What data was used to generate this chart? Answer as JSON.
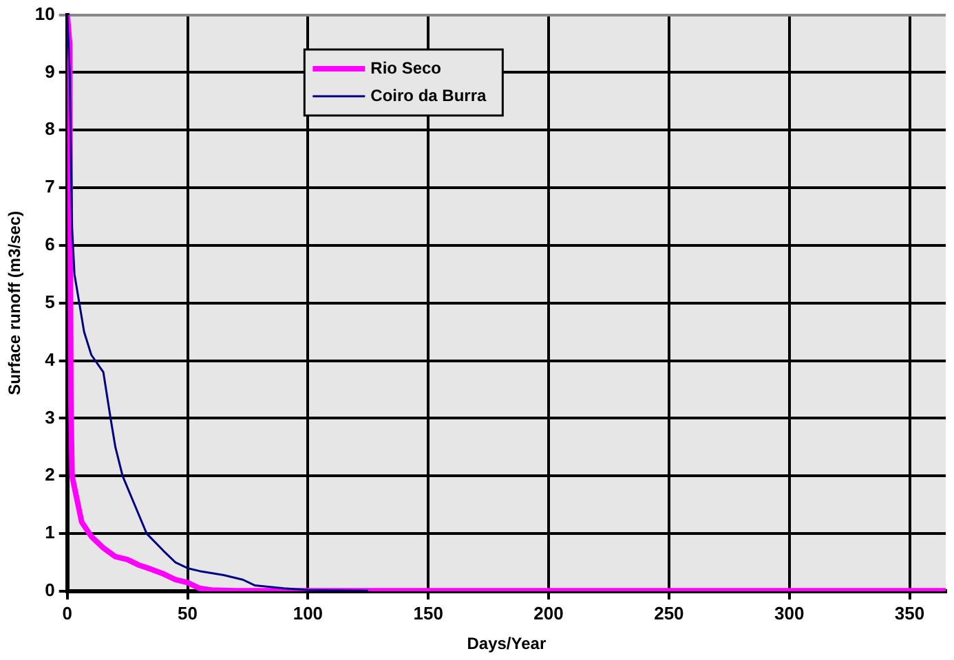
{
  "chart_data": {
    "type": "line",
    "xlabel": "Days/Year",
    "ylabel": "Surface runoff (m3/sec)",
    "xlim": [
      0,
      365
    ],
    "xticks": [
      0,
      50,
      100,
      150,
      200,
      250,
      300,
      350
    ],
    "ylim": [
      0,
      10
    ],
    "yticks": [
      0,
      1,
      2,
      3,
      4,
      5,
      6,
      7,
      8,
      9,
      10
    ],
    "grid": true,
    "legend": "top left",
    "marker": "none",
    "line_style": "solid",
    "series": [
      {
        "name": "Rio Seco",
        "color": "#ff00ff",
        "x": [
          0,
          1,
          1.5,
          2,
          4,
          6,
          10,
          15,
          20,
          25,
          30,
          35,
          40,
          45,
          50,
          55,
          60,
          70,
          365
        ],
        "values": [
          10,
          9.5,
          3.3,
          2.0,
          1.6,
          1.2,
          0.95,
          0.75,
          0.6,
          0.55,
          0.45,
          0.38,
          0.3,
          0.2,
          0.15,
          0.05,
          0.02,
          0.01,
          0.01
        ]
      },
      {
        "name": "Coiro da Burra",
        "color": "#000080",
        "x": [
          0,
          1,
          2,
          3,
          5,
          7,
          10,
          15,
          18,
          20,
          23,
          28,
          33,
          40,
          45,
          50,
          55,
          65,
          73,
          78,
          90,
          100,
          125
        ],
        "values": [
          10,
          9,
          6.3,
          5.5,
          5,
          4.5,
          4.1,
          3.8,
          3.0,
          2.5,
          2.0,
          1.5,
          1.0,
          0.7,
          0.5,
          0.4,
          0.35,
          0.28,
          0.2,
          0.1,
          0.05,
          0.02,
          0.01
        ]
      }
    ]
  }
}
